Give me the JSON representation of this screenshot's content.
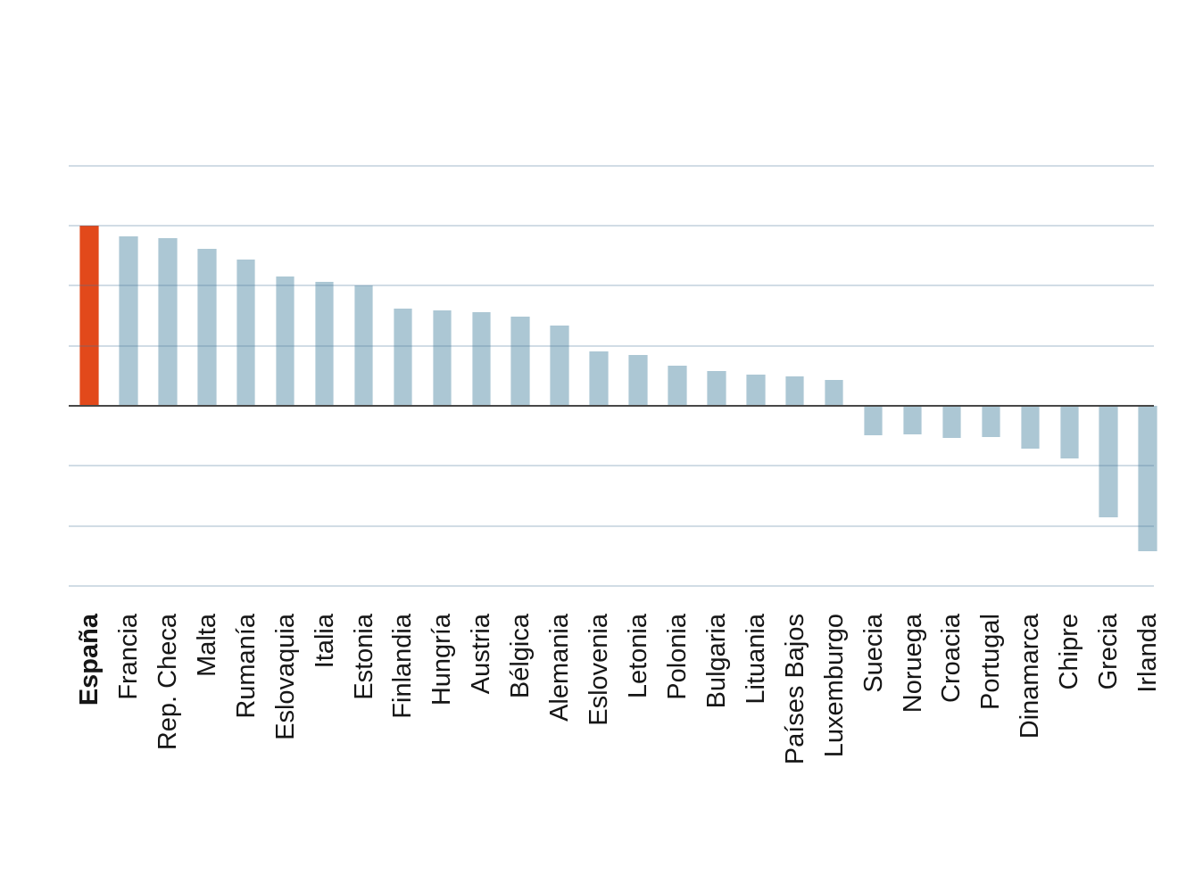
{
  "chart_data": {
    "type": "bar",
    "title": "",
    "categories": [
      "España",
      "Francia",
      "Rep. Checa",
      "Malta",
      "Rumanía",
      "Eslovaquia",
      "Italia",
      "Estonia",
      "Finlandia",
      "Hungría",
      "Austria",
      "Bélgica",
      "Alemania",
      "Eslovenia",
      "Letonia",
      "Polonia",
      "Bulgaria",
      "Lituania",
      "Países Bajos",
      "Luxemburgo",
      "Suecia",
      "Noruega",
      "Croacia",
      "Portugal",
      "Dinamarca",
      "Chipre",
      "Grecia",
      "Irlanda"
    ],
    "values": [
      3.0,
      2.82,
      2.8,
      2.62,
      2.43,
      2.15,
      2.07,
      2.0,
      1.62,
      1.59,
      1.56,
      1.49,
      1.33,
      0.91,
      0.85,
      0.67,
      0.58,
      0.52,
      0.49,
      0.43,
      -0.49,
      -0.48,
      -0.53,
      -0.52,
      -0.72,
      -0.87,
      -1.85,
      -2.42
    ],
    "value_note": "values estimated in gridline units; no numeric axis tick labels are visible in the image",
    "highlight": {
      "category": "España",
      "color": "#e2491b"
    },
    "bar_color": "#acc7d4",
    "axis": {
      "ylim": [
        -3,
        4
      ],
      "y_gridline_values": [
        4,
        3,
        2,
        1,
        -1,
        -2,
        -3
      ],
      "zero_line": true,
      "tick_labels_visible": false
    },
    "gridline_color": "#cfdde8",
    "zero_line_color": "#474747",
    "label_color": "#161616",
    "grid": true,
    "legend": "none",
    "xlabel": "",
    "ylabel": ""
  }
}
